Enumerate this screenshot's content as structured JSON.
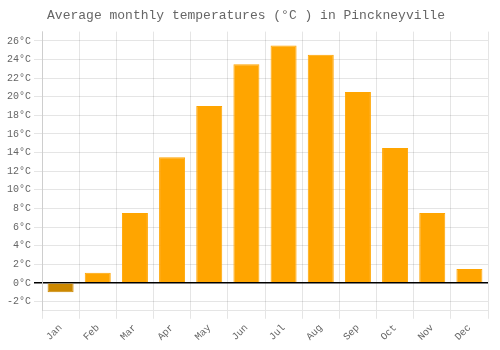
{
  "chart_data": {
    "type": "bar",
    "title": "Average monthly temperatures (°C ) in Pinckneyville",
    "categories": [
      "Jan",
      "Feb",
      "Mar",
      "Apr",
      "May",
      "Jun",
      "Jul",
      "Aug",
      "Sep",
      "Oct",
      "Nov",
      "Dec"
    ],
    "values": [
      -1.0,
      1.1,
      7.5,
      13.5,
      19.0,
      23.5,
      25.5,
      24.5,
      20.5,
      14.5,
      7.5,
      1.5
    ],
    "colors": [
      "#CC8800",
      "#FFA500",
      "#FFA500",
      "#FFA500",
      "#FFA500",
      "#FFA500",
      "#FFA500",
      "#FFA500",
      "#FFA500",
      "#FFA500",
      "#FFA500",
      "#FFA500"
    ],
    "ylim": [
      -3,
      27
    ],
    "yticks": [
      {
        "value": -2,
        "label": "-2°C"
      },
      {
        "value": 0,
        "label": "0°C"
      },
      {
        "value": 2,
        "label": "2°C"
      },
      {
        "value": 4,
        "label": "4°C"
      },
      {
        "value": 6,
        "label": "6°C"
      },
      {
        "value": 8,
        "label": "8°C"
      },
      {
        "value": 10,
        "label": "10°C"
      },
      {
        "value": 12,
        "label": "12°C"
      },
      {
        "value": 14,
        "label": "14°C"
      },
      {
        "value": 16,
        "label": "16°C"
      },
      {
        "value": 18,
        "label": "18°C"
      },
      {
        "value": 20,
        "label": "20°C"
      },
      {
        "value": 22,
        "label": "22°C"
      },
      {
        "value": 24,
        "label": "24°C"
      },
      {
        "value": 26,
        "label": "26°C"
      }
    ],
    "grid": true
  }
}
